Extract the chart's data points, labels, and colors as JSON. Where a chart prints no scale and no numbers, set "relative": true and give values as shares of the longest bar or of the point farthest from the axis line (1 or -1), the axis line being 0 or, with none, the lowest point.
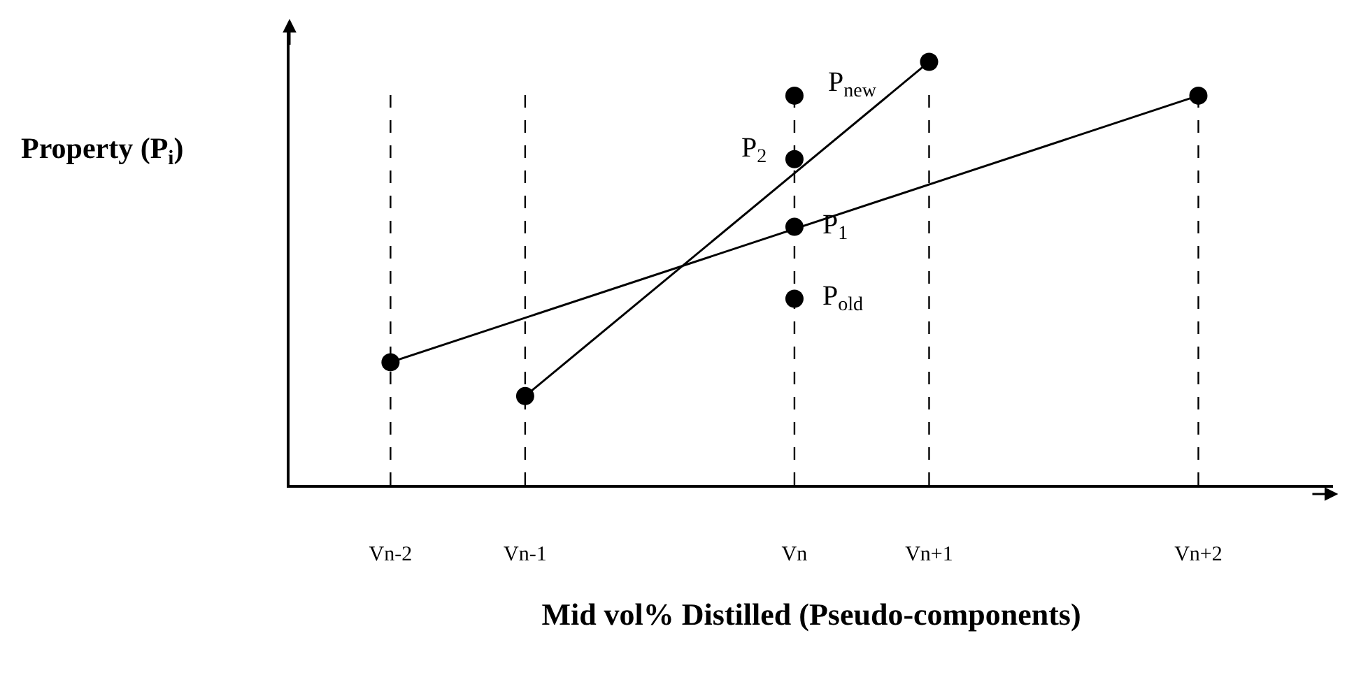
{
  "chart_data": {
    "type": "line",
    "relative": true,
    "xlabel": "Mid vol% Distilled (Pseudo-components)",
    "ylabel": "Property (P$_{i}$)",
    "categories": [
      "Vn-2",
      "Vn-1",
      null,
      "Vn",
      "Vn+1",
      null,
      "Vn+2"
    ],
    "series": [
      {
        "color": "#000000",
        "x": [
          "Vn-2",
          "Vn+2"
        ],
        "values": [
          0.29,
          0.92
        ]
      },
      {
        "color": "#000000",
        "x": [
          "Vn-1",
          "Vn+1"
        ],
        "values": [
          0.21,
          1.0
        ]
      },
      {
        "type": "scatter",
        "color": "#000000",
        "x": [
          "Vn",
          "Vn",
          "Vn",
          "Vn"
        ],
        "values": [
          0.92,
          0.77,
          0.61,
          0.44
        ]
      }
    ],
    "annotations": [
      {
        "text": "P$_{new}$",
        "x": "Vn",
        "y": 0.92
      },
      {
        "text": "P$_{2}$",
        "x": "Vn",
        "y": 0.77
      },
      {
        "text": "P$_{1}$",
        "x": "Vn",
        "y": 0.61
      },
      {
        "text": "P$_{old}$",
        "x": "Vn",
        "y": 0.44
      }
    ],
    "ref_lines": [
      {
        "axis": "x",
        "value": "Vn-2",
        "line_style": "dashed"
      },
      {
        "axis": "x",
        "value": "Vn-1",
        "line_style": "dashed"
      },
      {
        "axis": "x",
        "value": "Vn",
        "line_style": "dashed"
      },
      {
        "axis": "x",
        "value": "Vn+1",
        "line_style": "dashed"
      },
      {
        "axis": "x",
        "value": "Vn+2",
        "line_style": "dashed"
      }
    ],
    "marker": "circle",
    "line_style": "solid",
    "grid": false
  }
}
